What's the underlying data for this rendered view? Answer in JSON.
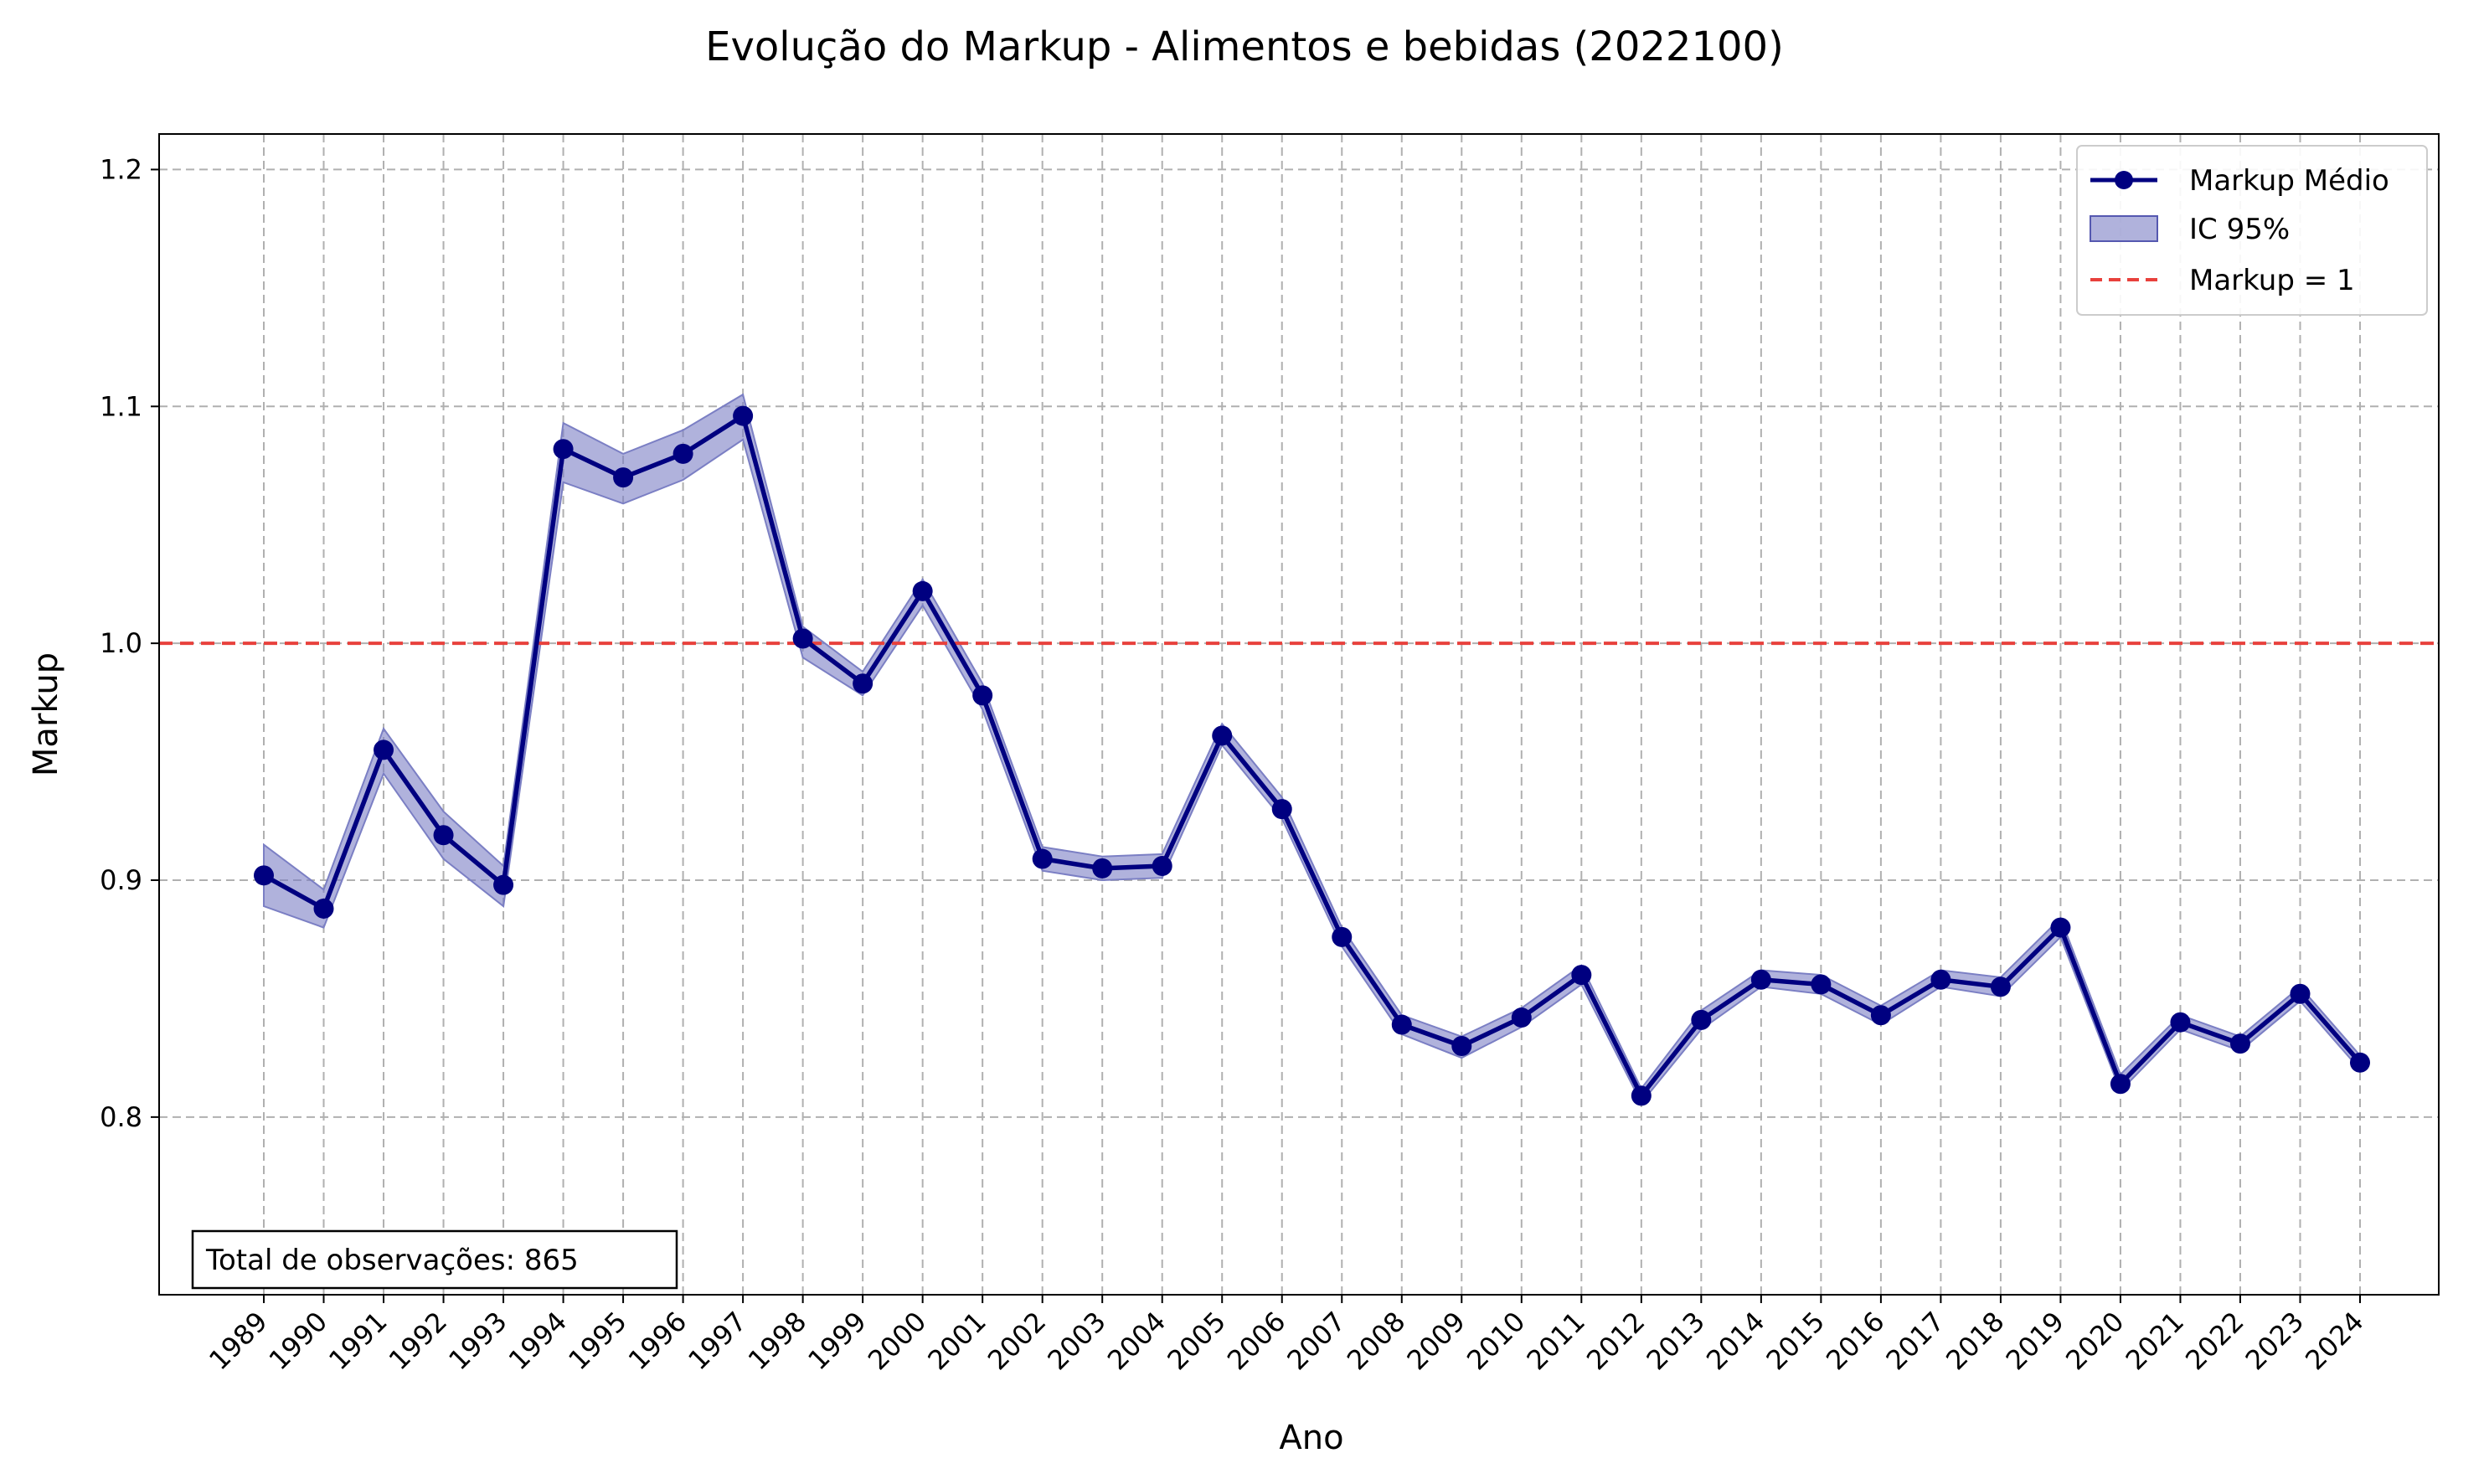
{
  "chart_data": {
    "type": "line",
    "title": "Evolução do Markup - Alimentos e bebidas (2022100)",
    "xlabel": "Ano",
    "ylabel": "Markup",
    "ylim": [
      0.725,
      1.215
    ],
    "yticks": [
      "0.8",
      "0.9",
      "1.0",
      "1.1",
      "1.2"
    ],
    "grid": true,
    "legend_position": "top-right",
    "x": [
      "1989",
      "1990",
      "1991",
      "1992",
      "1993",
      "1994",
      "1995",
      "1996",
      "1997",
      "1998",
      "1999",
      "2000",
      "2001",
      "2002",
      "2003",
      "2004",
      "2005",
      "2006",
      "2007",
      "2008",
      "2009",
      "2010",
      "2011",
      "2012",
      "2013",
      "2014",
      "2015",
      "2016",
      "2017",
      "2018",
      "2019",
      "2020",
      "2021",
      "2022",
      "2023",
      "2024"
    ],
    "series": [
      {
        "name": "Markup Médio",
        "color": "#000080",
        "values": [
          0.902,
          0.888,
          0.955,
          0.919,
          0.898,
          1.082,
          1.07,
          1.08,
          1.096,
          1.002,
          0.983,
          1.022,
          0.978,
          0.909,
          0.905,
          0.906,
          0.961,
          0.93,
          0.876,
          0.839,
          0.83,
          0.842,
          0.86,
          0.809,
          0.841,
          0.858,
          0.856,
          0.843,
          0.858,
          0.855,
          0.88,
          0.814,
          0.84,
          0.831,
          0.852,
          0.823
        ]
      }
    ],
    "confidence_band": {
      "name": "IC 95%",
      "color": "#7b7fc4",
      "lower": [
        0.889,
        0.88,
        0.945,
        0.909,
        0.889,
        1.068,
        1.059,
        1.069,
        1.086,
        0.994,
        0.978,
        1.016,
        0.972,
        0.904,
        0.9,
        0.901,
        0.957,
        0.926,
        0.872,
        0.835,
        0.825,
        0.838,
        0.856,
        0.806,
        0.837,
        0.855,
        0.852,
        0.839,
        0.855,
        0.851,
        0.876,
        0.811,
        0.837,
        0.828,
        0.849,
        0.82
      ],
      "upper": [
        0.915,
        0.896,
        0.964,
        0.929,
        0.906,
        1.093,
        1.08,
        1.09,
        1.105,
        1.007,
        0.988,
        1.027,
        0.983,
        0.914,
        0.91,
        0.911,
        0.966,
        0.935,
        0.88,
        0.843,
        0.834,
        0.846,
        0.864,
        0.812,
        0.845,
        0.862,
        0.86,
        0.847,
        0.862,
        0.859,
        0.884,
        0.818,
        0.843,
        0.834,
        0.855,
        0.826
      ]
    },
    "reference_line": {
      "name": "Markup = 1",
      "value": 1.0,
      "color": "#e8413c"
    },
    "annotation": "Total de observações: 865"
  }
}
